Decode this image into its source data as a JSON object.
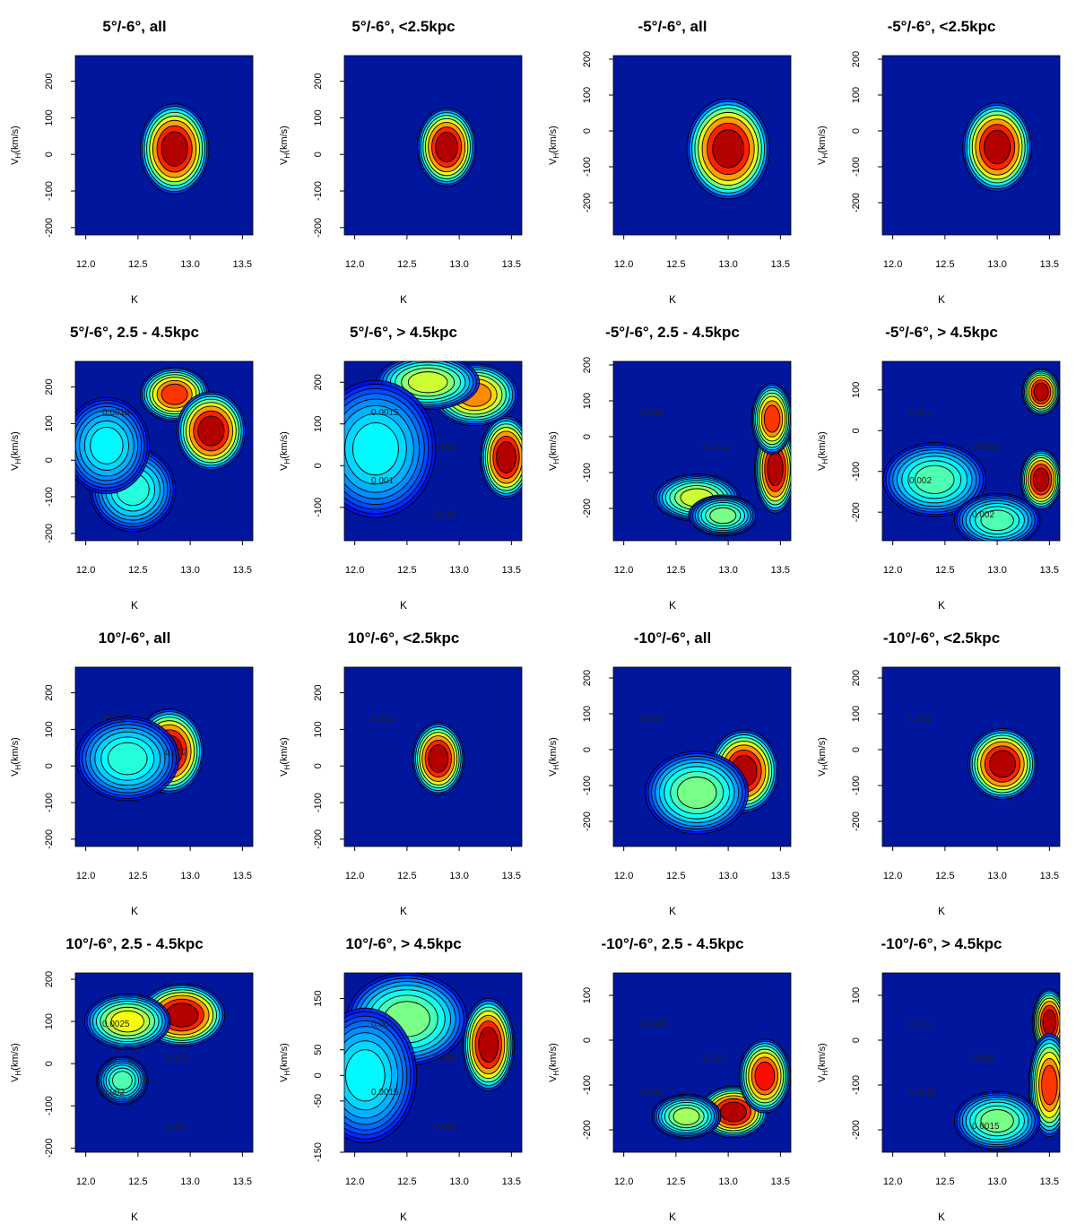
{
  "figure": {
    "xlabel": "K",
    "ylabel": "V_H(km/s)"
  },
  "chart_data": [
    {
      "type": "heatmap",
      "title": "5°/-6°, all",
      "xlabel": "K",
      "ylabel": "VH(km/s)",
      "xticks": [
        "12.0",
        "12.5",
        "13.0",
        "13.5"
      ],
      "yticks": [
        "-200",
        "-100",
        "0",
        "100",
        "200"
      ],
      "xlim": [
        11.9,
        13.6
      ],
      "ylim": [
        -220,
        270
      ],
      "contour_labels": [],
      "blobs": [
        {
          "x": 12.85,
          "y": 15,
          "sx": 0.2,
          "sy": 75,
          "a": 1.0
        }
      ]
    },
    {
      "type": "heatmap",
      "title": "5°/-6°, <2.5kpc",
      "xlabel": "K",
      "ylabel": "VH(km/s)",
      "xticks": [
        "12.0",
        "12.5",
        "13.0",
        "13.5"
      ],
      "yticks": [
        "-200",
        "-100",
        "0",
        "100",
        "200"
      ],
      "xlim": [
        11.9,
        13.6
      ],
      "ylim": [
        -220,
        270
      ],
      "contour_labels": [],
      "blobs": [
        {
          "x": 12.88,
          "y": 20,
          "sx": 0.17,
          "sy": 65,
          "a": 1.0
        }
      ]
    },
    {
      "type": "heatmap",
      "title": "-5°/-6°, all",
      "xlabel": "K",
      "ylabel": "VH(km/s)",
      "xticks": [
        "12.0",
        "12.5",
        "13.0",
        "13.5"
      ],
      "yticks": [
        "-200",
        "-100",
        "0",
        "100",
        "200"
      ],
      "xlim": [
        11.9,
        13.6
      ],
      "ylim": [
        -290,
        210
      ],
      "contour_labels": [],
      "blobs": [
        {
          "x": 13.0,
          "y": -50,
          "sx": 0.24,
          "sy": 85,
          "a": 1.0
        }
      ]
    },
    {
      "type": "heatmap",
      "title": "-5°/-6°, <2.5kpc",
      "xlabel": "K",
      "ylabel": "VH(km/s)",
      "xticks": [
        "12.0",
        "12.5",
        "13.0",
        "13.5"
      ],
      "yticks": [
        "-200",
        "-100",
        "0",
        "100",
        "200"
      ],
      "xlim": [
        11.9,
        13.6
      ],
      "ylim": [
        -290,
        210
      ],
      "contour_labels": [],
      "blobs": [
        {
          "x": 13.0,
          "y": -45,
          "sx": 0.2,
          "sy": 75,
          "a": 1.0
        }
      ]
    },
    {
      "type": "heatmap",
      "title": "5°/-6°, 2.5 - 4.5kpc",
      "xlabel": "K",
      "ylabel": "VH(km/s)",
      "xticks": [
        "12.0",
        "12.5",
        "13.0",
        "13.5"
      ],
      "yticks": [
        "-200",
        "-100",
        "0",
        "100",
        "200"
      ],
      "xlim": [
        11.9,
        13.6
      ],
      "ylim": [
        -220,
        270
      ],
      "contour_labels": [
        "0.0015"
      ],
      "blobs": [
        {
          "x": 12.85,
          "y": 180,
          "sx": 0.2,
          "sy": 45,
          "a": 0.85
        },
        {
          "x": 13.2,
          "y": 80,
          "sx": 0.2,
          "sy": 65,
          "a": 1.0
        },
        {
          "x": 12.45,
          "y": -80,
          "sx": 0.25,
          "sy": 70,
          "a": 0.35
        },
        {
          "x": 12.2,
          "y": 40,
          "sx": 0.25,
          "sy": 80,
          "a": 0.3
        }
      ]
    },
    {
      "type": "heatmap",
      "title": "5°/-6°, > 4.5kpc",
      "xlabel": "K",
      "ylabel": "VH(km/s)",
      "xticks": [
        "12.0",
        "12.5",
        "13.0",
        "13.5"
      ],
      "yticks": [
        "-100",
        "0",
        "100",
        "200"
      ],
      "xlim": [
        11.9,
        13.6
      ],
      "ylim": [
        -180,
        250
      ],
      "contour_labels": [
        "0.0015",
        "0.002",
        "0.001",
        "5e-04"
      ],
      "blobs": [
        {
          "x": 13.45,
          "y": 20,
          "sx": 0.15,
          "sy": 60,
          "a": 1.0
        },
        {
          "x": 13.15,
          "y": 170,
          "sx": 0.25,
          "sy": 45,
          "a": 0.75
        },
        {
          "x": 12.7,
          "y": 200,
          "sx": 0.3,
          "sy": 40,
          "a": 0.55
        },
        {
          "x": 12.2,
          "y": 40,
          "sx": 0.35,
          "sy": 100,
          "a": 0.3
        }
      ]
    },
    {
      "type": "heatmap",
      "title": "-5°/-6°, 2.5 - 4.5kpc",
      "xlabel": "K",
      "ylabel": "VH(km/s)",
      "xticks": [
        "12.0",
        "12.5",
        "13.0",
        "13.5"
      ],
      "yticks": [
        "-200",
        "-100",
        "0",
        "100",
        "200"
      ],
      "xlim": [
        11.9,
        13.6
      ],
      "ylim": [
        -290,
        210
      ],
      "contour_labels": [
        "0.001",
        "0.0015"
      ],
      "blobs": [
        {
          "x": 13.45,
          "y": -90,
          "sx": 0.12,
          "sy": 75,
          "a": 1.0
        },
        {
          "x": 13.42,
          "y": 50,
          "sx": 0.12,
          "sy": 60,
          "a": 0.85
        },
        {
          "x": 12.7,
          "y": -170,
          "sx": 0.25,
          "sy": 40,
          "a": 0.55
        },
        {
          "x": 12.95,
          "y": -220,
          "sx": 0.2,
          "sy": 35,
          "a": 0.45
        }
      ]
    },
    {
      "type": "heatmap",
      "title": "-5°/-6°, > 4.5kpc",
      "xlabel": "K",
      "ylabel": "VH(km/s)",
      "xticks": [
        "12.0",
        "12.5",
        "13.0",
        "13.5"
      ],
      "yticks": [
        "-200",
        "-100",
        "0",
        "100"
      ],
      "xlim": [
        11.9,
        13.6
      ],
      "ylim": [
        -270,
        170
      ],
      "contour_labels": [
        "0.001",
        "0.0015",
        "0.002",
        "0.002"
      ],
      "blobs": [
        {
          "x": 13.42,
          "y": 95,
          "sx": 0.11,
          "sy": 35,
          "a": 1.0
        },
        {
          "x": 13.42,
          "y": -120,
          "sx": 0.12,
          "sy": 45,
          "a": 1.0
        },
        {
          "x": 12.4,
          "y": -120,
          "sx": 0.3,
          "sy": 55,
          "a": 0.4
        },
        {
          "x": 13.0,
          "y": -220,
          "sx": 0.25,
          "sy": 40,
          "a": 0.4
        }
      ]
    },
    {
      "type": "heatmap",
      "title": "10°/-6°, all",
      "xlabel": "K",
      "ylabel": "VH(km/s)",
      "xticks": [
        "12.0",
        "12.5",
        "13.0",
        "13.5"
      ],
      "yticks": [
        "-200",
        "-100",
        "0",
        "100",
        "200"
      ],
      "xlim": [
        11.9,
        13.6
      ],
      "ylim": [
        -220,
        270
      ],
      "contour_labels": [
        "0.003",
        "0.002"
      ],
      "blobs": [
        {
          "x": 12.8,
          "y": 40,
          "sx": 0.2,
          "sy": 70,
          "a": 1.0
        },
        {
          "x": 12.4,
          "y": 20,
          "sx": 0.3,
          "sy": 70,
          "a": 0.35
        }
      ]
    },
    {
      "type": "heatmap",
      "title": "10°/-6°, <2.5kpc",
      "xlabel": "K",
      "ylabel": "VH(km/s)",
      "xticks": [
        "12.0",
        "12.5",
        "13.0",
        "13.5"
      ],
      "yticks": [
        "-200",
        "-100",
        "0",
        "100",
        "200"
      ],
      "xlim": [
        11.9,
        13.6
      ],
      "ylim": [
        -220,
        270
      ],
      "contour_labels": [
        "0.002"
      ],
      "blobs": [
        {
          "x": 12.8,
          "y": 20,
          "sx": 0.15,
          "sy": 60,
          "a": 1.0
        }
      ]
    },
    {
      "type": "heatmap",
      "title": "-10°/-6°, all",
      "xlabel": "K",
      "ylabel": "VH(km/s)",
      "xticks": [
        "12.0",
        "12.5",
        "13.0",
        "13.5"
      ],
      "yticks": [
        "-200",
        "-100",
        "0",
        "100",
        "200"
      ],
      "xlim": [
        11.9,
        13.6
      ],
      "ylim": [
        -270,
        230
      ],
      "contour_labels": [
        "0.003"
      ],
      "blobs": [
        {
          "x": 13.15,
          "y": -60,
          "sx": 0.2,
          "sy": 70,
          "a": 1.0
        },
        {
          "x": 12.7,
          "y": -120,
          "sx": 0.3,
          "sy": 70,
          "a": 0.45
        }
      ]
    },
    {
      "type": "heatmap",
      "title": "-10°/-6°, <2.5kpc",
      "xlabel": "K",
      "ylabel": "VH(km/s)",
      "xticks": [
        "12.0",
        "12.5",
        "13.0",
        "13.5"
      ],
      "yticks": [
        "-200",
        "-100",
        "0",
        "100",
        "200"
      ],
      "xlim": [
        11.9,
        13.6
      ],
      "ylim": [
        -270,
        230
      ],
      "contour_labels": [
        "0.002"
      ],
      "blobs": [
        {
          "x": 13.05,
          "y": -40,
          "sx": 0.2,
          "sy": 60,
          "a": 1.0
        }
      ]
    },
    {
      "type": "heatmap",
      "title": "10°/-6°, 2.5 - 4.5kpc",
      "xlabel": "K",
      "ylabel": "VH(km/s)",
      "xticks": [
        "12.0",
        "12.5",
        "13.0",
        "13.5"
      ],
      "yticks": [
        "-200",
        "-100",
        "0",
        "100",
        "200"
      ],
      "xlim": [
        11.9,
        13.6
      ],
      "ylim": [
        -210,
        215
      ],
      "contour_labels": [
        "0.0025",
        "0.003",
        "0.002",
        "0.001"
      ],
      "blobs": [
        {
          "x": 12.92,
          "y": 115,
          "sx": 0.25,
          "sy": 45,
          "a": 1.0
        },
        {
          "x": 12.4,
          "y": 100,
          "sx": 0.25,
          "sy": 40,
          "a": 0.6
        },
        {
          "x": 12.35,
          "y": -40,
          "sx": 0.15,
          "sy": 35,
          "a": 0.4
        }
      ]
    },
    {
      "type": "heatmap",
      "title": "10°/-6°, > 4.5kpc",
      "xlabel": "K",
      "ylabel": "VH(km/s)",
      "xticks": [
        "12.0",
        "12.5",
        "13.0",
        "13.5"
      ],
      "yticks": [
        "-150",
        "-50",
        "0",
        "50",
        "150"
      ],
      "xlim": [
        11.9,
        13.6
      ],
      "ylim": [
        -150,
        200
      ],
      "contour_labels": [
        "0.001",
        "0.002",
        "0.0015",
        "0.001"
      ],
      "blobs": [
        {
          "x": 13.28,
          "y": 60,
          "sx": 0.15,
          "sy": 55,
          "a": 1.0
        },
        {
          "x": 12.5,
          "y": 110,
          "sx": 0.35,
          "sy": 55,
          "a": 0.45
        },
        {
          "x": 12.1,
          "y": 0,
          "sx": 0.3,
          "sy": 80,
          "a": 0.3
        }
      ]
    },
    {
      "type": "heatmap",
      "title": "-10°/-6°, 2.5 - 4.5kpc",
      "xlabel": "K",
      "ylabel": "VH(km/s)",
      "xticks": [
        "12.0",
        "12.5",
        "13.0",
        "13.5"
      ],
      "yticks": [
        "-200",
        "-100",
        "0",
        "100"
      ],
      "xlim": [
        11.9,
        13.6
      ],
      "ylim": [
        -250,
        150
      ],
      "contour_labels": [
        "0.0015",
        "0.002",
        "0.002"
      ],
      "blobs": [
        {
          "x": 13.05,
          "y": -160,
          "sx": 0.2,
          "sy": 35,
          "a": 1.0
        },
        {
          "x": 13.35,
          "y": -80,
          "sx": 0.15,
          "sy": 50,
          "a": 0.9
        },
        {
          "x": 12.6,
          "y": -170,
          "sx": 0.2,
          "sy": 30,
          "a": 0.5
        }
      ]
    },
    {
      "type": "heatmap",
      "title": "-10°/-6°, > 4.5kpc",
      "xlabel": "K",
      "ylabel": "VH(km/s)",
      "xticks": [
        "12.0",
        "12.5",
        "13.0",
        "13.5"
      ],
      "yticks": [
        "-200",
        "-100",
        "0",
        "100"
      ],
      "xlim": [
        11.9,
        13.6
      ],
      "ylim": [
        -250,
        150
      ],
      "contour_labels": [
        "0.001",
        "0.002",
        "0.0025",
        "0.0015"
      ],
      "blobs": [
        {
          "x": 13.5,
          "y": 40,
          "sx": 0.1,
          "sy": 45,
          "a": 1.0
        },
        {
          "x": 13.5,
          "y": -100,
          "sx": 0.12,
          "sy": 70,
          "a": 0.85
        },
        {
          "x": 13.0,
          "y": -180,
          "sx": 0.25,
          "sy": 40,
          "a": 0.45
        }
      ]
    }
  ]
}
